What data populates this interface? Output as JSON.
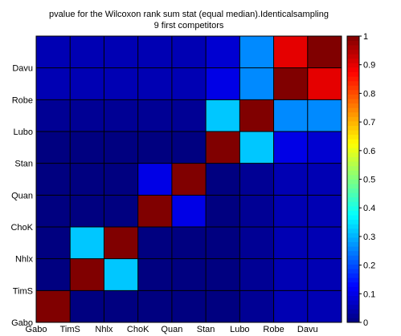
{
  "chart_data": {
    "type": "heatmap",
    "title": "pvalue for the Wilcoxon rank sum stat (equal median).Identicalsampling",
    "subtitle": "9 first competitors",
    "x_labels": [
      "Gabo",
      "TimS",
      "Nhlx",
      "ChoK",
      "Quan",
      "Stan",
      "Lubo",
      "Robe",
      "Davu"
    ],
    "y_labels": [
      "Gabo",
      "TimS",
      "Nhlx",
      "ChoK",
      "Quan",
      "Stan",
      "Lubo",
      "Robe",
      "Davu"
    ],
    "values": [
      [
        1.0,
        0.0,
        0.0,
        0.0,
        0.0,
        0.0,
        0.02,
        0.05,
        0.05
      ],
      [
        0.0,
        1.0,
        0.32,
        0.0,
        0.0,
        0.0,
        0.02,
        0.05,
        0.05
      ],
      [
        0.0,
        0.32,
        1.0,
        0.0,
        0.0,
        0.0,
        0.02,
        0.05,
        0.05
      ],
      [
        0.0,
        0.0,
        0.0,
        1.0,
        0.1,
        0.0,
        0.02,
        0.05,
        0.05
      ],
      [
        0.0,
        0.0,
        0.0,
        0.1,
        1.0,
        0.0,
        0.02,
        0.05,
        0.05
      ],
      [
        0.0,
        0.0,
        0.0,
        0.0,
        0.0,
        1.0,
        0.32,
        0.1,
        0.08
      ],
      [
        0.02,
        0.02,
        0.02,
        0.02,
        0.02,
        0.32,
        1.0,
        0.26,
        0.26
      ],
      [
        0.05,
        0.05,
        0.05,
        0.05,
        0.05,
        0.1,
        0.26,
        1.0,
        0.9
      ],
      [
        0.05,
        0.05,
        0.05,
        0.05,
        0.05,
        0.08,
        0.26,
        0.9,
        1.0
      ]
    ],
    "colorbar": {
      "range": [
        0,
        1
      ],
      "ticks": [
        "0",
        "0.1",
        "0.2",
        "0.3",
        "0.4",
        "0.5",
        "0.6",
        "0.7",
        "0.8",
        "0.9",
        "1"
      ]
    },
    "colormap": "jet"
  }
}
